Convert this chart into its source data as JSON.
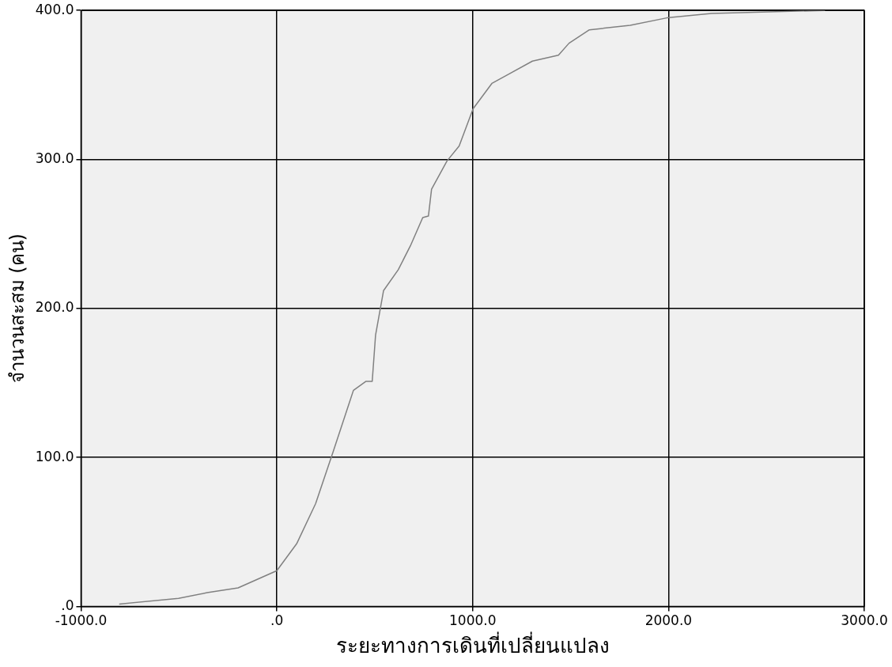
{
  "chart_data": {
    "type": "line",
    "xlabel": "ระยะทางการเดินที่เปลี่ยนแปลง",
    "ylabel": "จำนวนสะสม (คน)",
    "x": [
      -805,
      -502,
      -356,
      -198,
      0,
      101,
      198,
      288,
      391,
      454,
      487,
      504,
      545,
      620,
      682,
      745,
      774,
      790,
      869,
      931,
      1002,
      1098,
      1181,
      1305,
      1438,
      1492,
      1596,
      1804,
      1991,
      2219,
      2800
    ],
    "series": [
      {
        "color": "#808080",
        "values": [
          1.6,
          5.4,
          9.2,
          12.4,
          24,
          42,
          69,
          104,
          145,
          151,
          151,
          182,
          212,
          226,
          242,
          261,
          262,
          280,
          299,
          309,
          334,
          351,
          357,
          366,
          370,
          378,
          387,
          390,
          395,
          398,
          400
        ]
      }
    ],
    "xlim": [
      -1000,
      3000
    ],
    "xticks": [
      {
        "value": -1000,
        "label": "-1000.0"
      },
      {
        "value": 0,
        "label": ".0"
      },
      {
        "value": 1000,
        "label": "1000.0"
      },
      {
        "value": 2000,
        "label": "2000.0"
      },
      {
        "value": 3000,
        "label": "3000.0"
      }
    ],
    "ylim": [
      0,
      400
    ],
    "yticks": [
      {
        "value": 0,
        "label": ".0"
      },
      {
        "value": 100,
        "label": "100.0"
      },
      {
        "value": 200,
        "label": "200.0"
      },
      {
        "value": 300,
        "label": "300.0"
      },
      {
        "value": 400,
        "label": "400.0"
      }
    ],
    "grid": true,
    "legend": false,
    "marker": "none",
    "line_style": "solid"
  }
}
